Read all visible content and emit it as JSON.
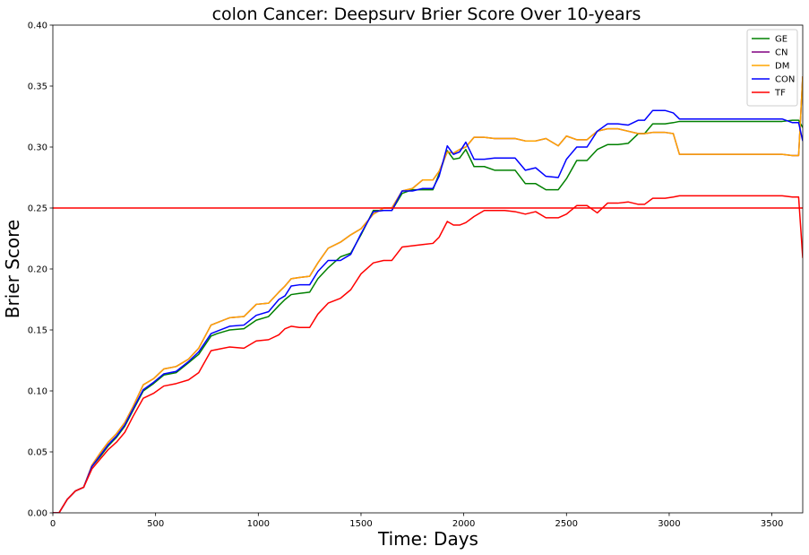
{
  "chart_data": {
    "type": "line",
    "title": "colon Cancer: Deepsurv Brier Score Over 10-years",
    "xlabel": "Time: Days",
    "ylabel": "Brier Score",
    "xlim": [
      0,
      3650
    ],
    "ylim": [
      0.0,
      0.4
    ],
    "xticks": [
      0,
      500,
      1000,
      1500,
      2000,
      2500,
      3000,
      3500
    ],
    "yticks": [
      "0.00",
      "0.05",
      "0.10",
      "0.15",
      "0.20",
      "0.25",
      "0.30",
      "0.35",
      "0.40"
    ],
    "grid": false,
    "legend_position": "top-right",
    "reference_line": {
      "y": 0.25,
      "color": "#ff0000"
    },
    "series": [
      {
        "name": "GE",
        "color": "#008000",
        "x": [
          0,
          30,
          70,
          110,
          150,
          190,
          230,
          270,
          310,
          350,
          390,
          440,
          490,
          540,
          600,
          660,
          710,
          770,
          800,
          860,
          930,
          990,
          1050,
          1100,
          1130,
          1160,
          1200,
          1250,
          1290,
          1340,
          1400,
          1450,
          1500,
          1560,
          1610,
          1650,
          1700,
          1750,
          1800,
          1850,
          1880,
          1920,
          1950,
          1980,
          2010,
          2050,
          2100,
          2150,
          2200,
          2250,
          2300,
          2350,
          2400,
          2460,
          2500,
          2550,
          2600,
          2650,
          2700,
          2750,
          2800,
          2850,
          2880,
          2920,
          2980,
          3020,
          3050,
          3100,
          3200,
          3400,
          3550,
          3600,
          3630,
          3650
        ],
        "y": [
          0.0,
          0.0,
          0.011,
          0.018,
          0.021,
          0.038,
          0.046,
          0.055,
          0.062,
          0.071,
          0.084,
          0.1,
          0.106,
          0.113,
          0.115,
          0.123,
          0.13,
          0.145,
          0.147,
          0.15,
          0.151,
          0.158,
          0.161,
          0.17,
          0.175,
          0.179,
          0.18,
          0.181,
          0.192,
          0.201,
          0.21,
          0.213,
          0.228,
          0.248,
          0.248,
          0.248,
          0.262,
          0.265,
          0.265,
          0.265,
          0.278,
          0.297,
          0.29,
          0.291,
          0.298,
          0.284,
          0.284,
          0.281,
          0.281,
          0.281,
          0.27,
          0.27,
          0.265,
          0.265,
          0.274,
          0.289,
          0.289,
          0.298,
          0.302,
          0.302,
          0.303,
          0.311,
          0.311,
          0.319,
          0.319,
          0.32,
          0.321,
          0.321,
          0.321,
          0.321,
          0.321,
          0.322,
          0.322,
          0.316
        ]
      },
      {
        "name": "CN",
        "color": "#800080",
        "x": [
          0,
          30,
          70,
          110,
          150,
          190,
          230,
          270,
          310,
          350,
          390,
          440,
          490,
          540,
          600,
          660,
          710,
          770,
          800,
          860,
          930,
          990,
          1050,
          1100,
          1130,
          1160,
          1200,
          1250,
          1290,
          1340,
          1400,
          1450,
          1500,
          1560,
          1610,
          1650,
          1700,
          1750,
          1800,
          1850,
          1880,
          1920,
          1950,
          1980,
          2010,
          2050,
          2100,
          2150,
          2200,
          2250,
          2300,
          2350,
          2400,
          2460,
          2500,
          2550,
          2600,
          2650,
          2700,
          2750,
          2800,
          2850,
          2880,
          2920,
          2980,
          3020,
          3050,
          3100,
          3200,
          3400,
          3550,
          3600,
          3630,
          3650
        ],
        "y": [
          0.0,
          0.0,
          0.011,
          0.018,
          0.021,
          0.039,
          0.049,
          0.058,
          0.065,
          0.074,
          0.087,
          0.105,
          0.11,
          0.118,
          0.12,
          0.126,
          0.135,
          0.154,
          0.156,
          0.16,
          0.161,
          0.171,
          0.172,
          0.181,
          0.186,
          0.192,
          0.193,
          0.194,
          0.205,
          0.217,
          0.222,
          0.228,
          0.233,
          0.245,
          0.25,
          0.25,
          0.264,
          0.266,
          0.273,
          0.273,
          0.28,
          0.296,
          0.295,
          0.298,
          0.3,
          0.308,
          0.308,
          0.307,
          0.307,
          0.307,
          0.305,
          0.305,
          0.307,
          0.301,
          0.309,
          0.306,
          0.306,
          0.313,
          0.315,
          0.315,
          0.313,
          0.311,
          0.311,
          0.312,
          0.312,
          0.311,
          0.294,
          0.294,
          0.294,
          0.294,
          0.294,
          0.293,
          0.293,
          0.358
        ]
      },
      {
        "name": "DM",
        "color": "#ffa500",
        "x": [
          0,
          30,
          70,
          110,
          150,
          190,
          230,
          270,
          310,
          350,
          390,
          440,
          490,
          540,
          600,
          660,
          710,
          770,
          800,
          860,
          930,
          990,
          1050,
          1100,
          1130,
          1160,
          1200,
          1250,
          1290,
          1340,
          1400,
          1450,
          1500,
          1560,
          1610,
          1650,
          1700,
          1750,
          1800,
          1850,
          1880,
          1920,
          1950,
          1980,
          2010,
          2050,
          2100,
          2150,
          2200,
          2250,
          2300,
          2350,
          2400,
          2460,
          2500,
          2550,
          2600,
          2650,
          2700,
          2750,
          2800,
          2850,
          2880,
          2920,
          2980,
          3020,
          3050,
          3100,
          3200,
          3400,
          3550,
          3600,
          3630,
          3650
        ],
        "y": [
          0.0,
          0.0,
          0.011,
          0.018,
          0.021,
          0.039,
          0.049,
          0.058,
          0.065,
          0.074,
          0.087,
          0.105,
          0.11,
          0.118,
          0.12,
          0.126,
          0.135,
          0.154,
          0.156,
          0.16,
          0.161,
          0.171,
          0.172,
          0.181,
          0.186,
          0.192,
          0.193,
          0.194,
          0.205,
          0.217,
          0.222,
          0.228,
          0.233,
          0.245,
          0.25,
          0.25,
          0.264,
          0.266,
          0.273,
          0.273,
          0.28,
          0.296,
          0.295,
          0.298,
          0.3,
          0.308,
          0.308,
          0.307,
          0.307,
          0.307,
          0.305,
          0.305,
          0.307,
          0.301,
          0.309,
          0.306,
          0.306,
          0.313,
          0.315,
          0.315,
          0.313,
          0.311,
          0.311,
          0.312,
          0.312,
          0.311,
          0.294,
          0.294,
          0.294,
          0.294,
          0.294,
          0.293,
          0.293,
          0.358
        ]
      },
      {
        "name": "CON",
        "color": "#0000ff",
        "x": [
          0,
          30,
          70,
          110,
          150,
          190,
          230,
          270,
          310,
          350,
          390,
          440,
          490,
          540,
          600,
          660,
          710,
          770,
          800,
          860,
          930,
          990,
          1050,
          1100,
          1130,
          1160,
          1200,
          1250,
          1290,
          1340,
          1400,
          1450,
          1500,
          1560,
          1610,
          1650,
          1700,
          1750,
          1800,
          1850,
          1880,
          1920,
          1950,
          1980,
          2010,
          2050,
          2100,
          2150,
          2200,
          2250,
          2300,
          2350,
          2400,
          2460,
          2500,
          2550,
          2600,
          2650,
          2700,
          2750,
          2800,
          2850,
          2880,
          2920,
          2980,
          3020,
          3050,
          3100,
          3200,
          3400,
          3550,
          3600,
          3630,
          3650
        ],
        "y": [
          0.0,
          0.0,
          0.011,
          0.018,
          0.021,
          0.038,
          0.047,
          0.056,
          0.063,
          0.072,
          0.085,
          0.101,
          0.107,
          0.114,
          0.116,
          0.124,
          0.132,
          0.147,
          0.149,
          0.153,
          0.154,
          0.162,
          0.165,
          0.175,
          0.178,
          0.186,
          0.187,
          0.187,
          0.198,
          0.207,
          0.207,
          0.212,
          0.229,
          0.247,
          0.248,
          0.248,
          0.264,
          0.264,
          0.266,
          0.266,
          0.276,
          0.301,
          0.294,
          0.296,
          0.304,
          0.29,
          0.29,
          0.291,
          0.291,
          0.291,
          0.281,
          0.283,
          0.276,
          0.275,
          0.29,
          0.3,
          0.3,
          0.313,
          0.319,
          0.319,
          0.318,
          0.322,
          0.322,
          0.33,
          0.33,
          0.328,
          0.323,
          0.323,
          0.323,
          0.323,
          0.323,
          0.32,
          0.32,
          0.305
        ]
      },
      {
        "name": "TF",
        "color": "#ff0000",
        "x": [
          0,
          30,
          70,
          110,
          150,
          190,
          230,
          270,
          310,
          350,
          390,
          440,
          490,
          540,
          600,
          660,
          710,
          770,
          800,
          860,
          930,
          990,
          1050,
          1100,
          1130,
          1160,
          1200,
          1250,
          1290,
          1340,
          1400,
          1450,
          1500,
          1560,
          1610,
          1650,
          1700,
          1750,
          1800,
          1850,
          1880,
          1920,
          1950,
          1980,
          2010,
          2050,
          2100,
          2150,
          2200,
          2250,
          2300,
          2350,
          2400,
          2460,
          2500,
          2550,
          2600,
          2650,
          2700,
          2750,
          2800,
          2850,
          2880,
          2920,
          2980,
          3020,
          3050,
          3100,
          3200,
          3400,
          3550,
          3600,
          3630,
          3650
        ],
        "y": [
          0.0,
          0.0,
          0.011,
          0.018,
          0.021,
          0.036,
          0.044,
          0.052,
          0.058,
          0.066,
          0.079,
          0.094,
          0.098,
          0.104,
          0.106,
          0.109,
          0.115,
          0.133,
          0.134,
          0.136,
          0.135,
          0.141,
          0.142,
          0.146,
          0.151,
          0.153,
          0.152,
          0.152,
          0.163,
          0.172,
          0.176,
          0.183,
          0.196,
          0.205,
          0.207,
          0.207,
          0.218,
          0.219,
          0.22,
          0.221,
          0.226,
          0.239,
          0.236,
          0.236,
          0.238,
          0.243,
          0.248,
          0.248,
          0.248,
          0.247,
          0.245,
          0.247,
          0.242,
          0.242,
          0.245,
          0.252,
          0.252,
          0.246,
          0.254,
          0.254,
          0.255,
          0.253,
          0.253,
          0.258,
          0.258,
          0.259,
          0.26,
          0.26,
          0.26,
          0.26,
          0.26,
          0.259,
          0.259,
          0.209
        ]
      }
    ]
  }
}
